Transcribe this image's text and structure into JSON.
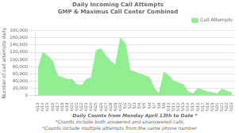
{
  "chart_data": {
    "type": "area",
    "title": "Daily Incoming Call Attempts",
    "subtitle": "GMP & Maximus Call Center Combined",
    "ylabel": "Number of call attempts daily",
    "xlabel": "Daily Counts from Monday April 13th to Date *",
    "annotations": [
      "*Counts include both answered and unanswered calls",
      "*Counts include multiple attempts from the same phone number"
    ],
    "categories": [
      "4/13",
      "4/14",
      "4/15",
      "4/16",
      "4/17",
      "4/18",
      "4/19",
      "4/20",
      "4/21",
      "4/22",
      "4/23",
      "4/24",
      "4/25",
      "4/26",
      "4/27",
      "4/28",
      "4/29",
      "4/30",
      "5/1",
      "5/2",
      "5/3",
      "5/4",
      "5/5",
      "5/6",
      "5/7",
      "5/8",
      "5/9",
      "5/10",
      "5/11",
      "5/12",
      "5/13",
      "5/14",
      "5/15",
      "5/16",
      "5/17",
      "5/18",
      "5/19",
      "5/20",
      "5/21",
      "5/22",
      "5/23"
    ],
    "series": [
      {
        "name": "Call Attempts",
        "color": "#90EE90",
        "values": [
          75000,
          120000,
          110000,
          95000,
          55000,
          50000,
          45000,
          45000,
          30000,
          28000,
          45000,
          50000,
          125000,
          130000,
          110000,
          95000,
          85000,
          160000,
          145000,
          70000,
          65000,
          60000,
          55000,
          50000,
          20000,
          5000,
          65000,
          55000,
          40000,
          35000,
          30000,
          10000,
          5000,
          20000,
          15000,
          10000,
          8000,
          5000,
          18000,
          12000,
          8000
        ]
      }
    ],
    "ylim": [
      0,
      180000
    ],
    "yticks": [
      0,
      {
        "value": 20000,
        "label": "20,000"
      },
      {
        "value": 40000,
        "label": "40,000"
      },
      {
        "value": 60000,
        "label": "60,000"
      },
      {
        "value": 80000,
        "label": "80,000"
      },
      {
        "value": 100000,
        "label": "100,000"
      },
      {
        "value": 120000,
        "label": "120,000"
      },
      {
        "value": 140000,
        "label": "140,000"
      },
      {
        "value": 160000,
        "label": "160,000"
      },
      {
        "value": 180000,
        "label": "180,000"
      }
    ],
    "grid": "y",
    "legend": "upper right"
  }
}
